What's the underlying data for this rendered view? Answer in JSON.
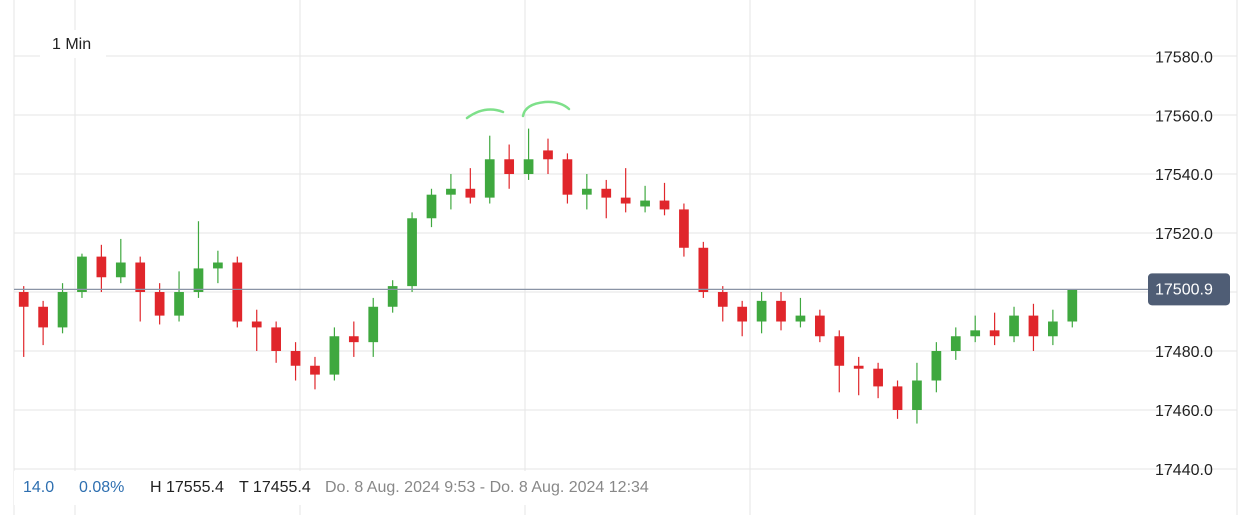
{
  "chart_data": {
    "type": "candlestick",
    "timeframe": "1 Min",
    "open": [
      17500,
      17495,
      17488,
      17500,
      17512,
      17505,
      17510,
      17500,
      17492,
      17500,
      17508,
      17510,
      17490,
      17488,
      17480,
      17475,
      17472,
      17485,
      17483,
      17495,
      17502,
      17525,
      17533,
      17535,
      17532,
      17545,
      17540,
      17548,
      17545,
      17533,
      17535,
      17532,
      17529,
      17531,
      17528,
      17515,
      17500,
      17495,
      17490,
      17497,
      17490,
      17492,
      17485,
      17475,
      17474,
      17468,
      17460,
      17470,
      17480,
      17485,
      17487,
      17485,
      17492,
      17485,
      17490
    ],
    "high": [
      17502,
      17497,
      17503,
      17513,
      17516,
      17518,
      17512,
      17503,
      17507,
      17524,
      17514,
      17512,
      17494,
      17490,
      17483,
      17478,
      17488,
      17490,
      17498,
      17504,
      17527,
      17535,
      17540,
      17542,
      17553,
      17550,
      17555.4,
      17552,
      17547,
      17540,
      17538,
      17542,
      17536,
      17537,
      17530,
      17517,
      17502,
      17497,
      17500,
      17500,
      17498,
      17494,
      17487,
      17478,
      17476,
      17470,
      17476,
      17483,
      17488,
      17492,
      17493,
      17495,
      17496,
      17494,
      17501
    ],
    "low": [
      17478,
      17482,
      17486,
      17498,
      17500,
      17503,
      17490,
      17489,
      17490,
      17498,
      17503,
      17488,
      17480,
      17476,
      17470,
      17467,
      17470,
      17478,
      17478,
      17493,
      17500,
      17522,
      17528,
      17530,
      17530,
      17535,
      17538,
      17540,
      17530,
      17528,
      17525,
      17527,
      17527,
      17526,
      17512,
      17498,
      17490,
      17485,
      17486,
      17487,
      17488,
      17483,
      17466,
      17465,
      17464,
      17457,
      17455.4,
      17466,
      17477,
      17483,
      17482,
      17483,
      17480,
      17482,
      17488
    ],
    "close": [
      17495,
      17488,
      17500,
      17512,
      17505,
      17510,
      17500,
      17492,
      17500,
      17508,
      17510,
      17490,
      17488,
      17480,
      17475,
      17472,
      17485,
      17483,
      17495,
      17502,
      17525,
      17533,
      17535,
      17532,
      17545,
      17540,
      17545,
      17545,
      17533,
      17535,
      17532,
      17530,
      17531,
      17528,
      17515,
      17500,
      17495,
      17490,
      17497,
      17490,
      17492,
      17485,
      17475,
      17474,
      17468,
      17460,
      17470,
      17480,
      17485,
      17487,
      17485,
      17492,
      17485,
      17490,
      17500.9
    ],
    "up_color": "#3fa83f",
    "down_color": "#e0262b",
    "ylim": [
      17424.4,
      17599
    ],
    "yticks": [
      {
        "value": 17440,
        "label": "17440.0"
      },
      {
        "value": 17460,
        "label": "17460.0"
      },
      {
        "value": 17480,
        "label": "17480.0"
      },
      {
        "value": 17500,
        "label": "17500.0"
      },
      {
        "value": 17520,
        "label": "17520.0"
      },
      {
        "value": 17540,
        "label": "17540.0"
      },
      {
        "value": 17560,
        "label": "17560.0"
      },
      {
        "value": 17580,
        "label": "17580.0"
      }
    ],
    "last_price": 17500.9,
    "grid": true
  },
  "footer": {
    "change": "14.0",
    "change_pct": "0.08%",
    "high": "H 17555.4",
    "low": "T 17455.4",
    "range": "Do. 8 Aug. 2024 9:53 - Do. 8 Aug. 2024 12:34"
  }
}
